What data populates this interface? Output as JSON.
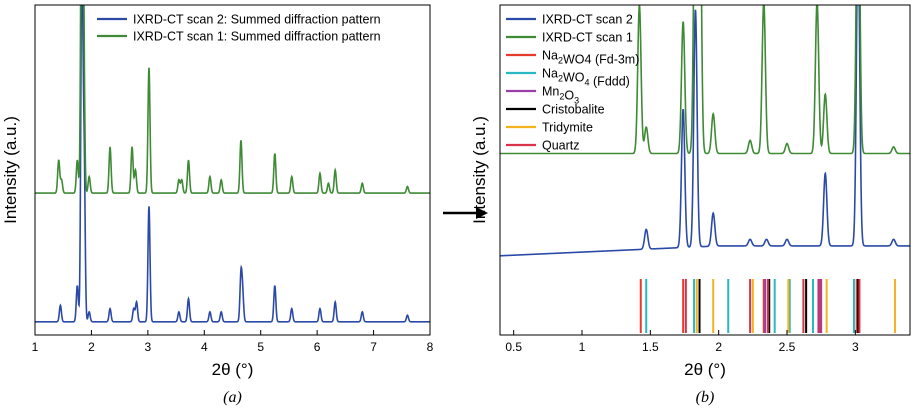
{
  "colors": {
    "scan2": "#2b4aa8",
    "scan1": "#3e8a35",
    "na2wo4_fd3m": "#e63c2f",
    "na2wo4_fddd": "#27b8c4",
    "mn2o3": "#9b3fa8",
    "cristobalite": "#000000",
    "tridymite": "#f4b21f",
    "quartz": "#d8334a",
    "arrow": "#000000"
  },
  "arrow": {
    "icon": "right-arrow-icon"
  },
  "chart_data": [
    {
      "panel": "a",
      "type": "line",
      "caption": "(a)",
      "xlabel": "2θ (°)",
      "ylabel": "Intensity (a.u.)",
      "xlim": [
        1,
        8
      ],
      "xticks": [
        "1",
        "2",
        "3",
        "4",
        "5",
        "6",
        "7",
        "8"
      ],
      "yticks": "none",
      "legend_position": "top-right",
      "series": [
        {
          "name": "IXRD-CT scan 2: Summed diffraction pattern",
          "color_key": "scan2",
          "baseline": 0.04,
          "peaks": [
            [
              1.45,
              0.05
            ],
            [
              1.75,
              0.11
            ],
            [
              1.83,
              1.1
            ],
            [
              1.87,
              0.5
            ],
            [
              1.96,
              0.03
            ],
            [
              2.33,
              0.04
            ],
            [
              2.75,
              0.04
            ],
            [
              2.8,
              0.06
            ],
            [
              3.02,
              0.35
            ],
            [
              3.55,
              0.03
            ],
            [
              3.72,
              0.07
            ],
            [
              4.1,
              0.03
            ],
            [
              4.3,
              0.03
            ],
            [
              4.65,
              0.14
            ],
            [
              4.68,
              0.08
            ],
            [
              5.25,
              0.11
            ],
            [
              5.55,
              0.04
            ],
            [
              6.05,
              0.04
            ],
            [
              6.32,
              0.06
            ],
            [
              6.8,
              0.03
            ],
            [
              7.6,
              0.02
            ]
          ]
        },
        {
          "name": "IXRD-CT scan 1: Summed diffraction pattern",
          "color_key": "scan1",
          "baseline": 0.43,
          "peaks": [
            [
              1.42,
              0.1
            ],
            [
              1.47,
              0.04
            ],
            [
              1.75,
              0.1
            ],
            [
              1.83,
              1.2
            ],
            [
              1.86,
              0.5
            ],
            [
              1.96,
              0.05
            ],
            [
              2.33,
              0.14
            ],
            [
              2.72,
              0.14
            ],
            [
              2.78,
              0.07
            ],
            [
              3.02,
              0.38
            ],
            [
              3.55,
              0.04
            ],
            [
              3.6,
              0.04
            ],
            [
              3.72,
              0.1
            ],
            [
              4.1,
              0.05
            ],
            [
              4.3,
              0.04
            ],
            [
              4.65,
              0.16
            ],
            [
              5.25,
              0.12
            ],
            [
              5.55,
              0.05
            ],
            [
              6.05,
              0.06
            ],
            [
              6.2,
              0.03
            ],
            [
              6.32,
              0.07
            ],
            [
              6.8,
              0.03
            ],
            [
              7.6,
              0.02
            ]
          ]
        }
      ]
    },
    {
      "panel": "b",
      "type": "line",
      "caption": "(b)",
      "xlabel": "2θ (°)",
      "ylabel": "Intensity (a.u.)",
      "xlim": [
        0.4,
        3.4
      ],
      "xticks": [
        "0.5",
        "1",
        "1.5",
        "2",
        "2.5",
        "3"
      ],
      "yticks": "none",
      "legend_position": "top-left",
      "series": [
        {
          "name": "IXRD-CT scan 2",
          "color_key": "scan2",
          "baseline": 0.24,
          "peaks": [
            [
              1.47,
              0.06
            ],
            [
              1.74,
              0.42
            ],
            [
              1.83,
              0.72
            ],
            [
              1.96,
              0.1
            ],
            [
              2.23,
              0.02
            ],
            [
              2.35,
              0.02
            ],
            [
              2.5,
              0.02
            ],
            [
              2.78,
              0.22
            ],
            [
              3.02,
              0.95
            ],
            [
              3.28,
              0.02
            ]
          ]
        },
        {
          "name": "IXRD-CT scan 1",
          "color_key": "scan1",
          "baseline": 0.55,
          "peaks": [
            [
              1.42,
              0.45
            ],
            [
              1.47,
              0.08
            ],
            [
              1.74,
              0.4
            ],
            [
              1.83,
              1.0
            ],
            [
              1.86,
              1.0
            ],
            [
              1.96,
              0.12
            ],
            [
              2.23,
              0.04
            ],
            [
              2.33,
              0.46
            ],
            [
              2.5,
              0.03
            ],
            [
              2.72,
              0.46
            ],
            [
              2.78,
              0.18
            ],
            [
              3.02,
              1.0
            ],
            [
              3.28,
              0.02
            ]
          ]
        }
      ],
      "reference_lines": [
        {
          "label_parts": [
            [
              "Na",
              ""
            ],
            [
              "2",
              "sub"
            ],
            [
              "WO4 (Fd-3m)",
              ""
            ]
          ],
          "color_key": "na2wo4_fd3m",
          "positions": [
            1.43,
            1.74,
            2.33,
            2.74,
            3.01
          ]
        },
        {
          "label_parts": [
            [
              "Na",
              ""
            ],
            [
              "2",
              "sub"
            ],
            [
              "WO",
              ""
            ],
            [
              "4",
              "sub"
            ],
            [
              " (Fddd)",
              ""
            ]
          ],
          "color_key": "na2wo4_fddd",
          "positions": [
            1.47,
            1.82,
            2.07,
            2.41,
            2.52,
            2.69,
            2.99
          ]
        },
        {
          "label_parts": [
            [
              "Mn",
              ""
            ],
            [
              "2",
              "sub"
            ],
            [
              "O",
              ""
            ],
            [
              "3",
              "sub"
            ]
          ],
          "color_key": "mn2o3",
          "positions": [
            2.34,
            2.73,
            2.75
          ]
        },
        {
          "label_parts": [
            [
              "Cristobalite",
              ""
            ]
          ],
          "color_key": "cristobalite",
          "positions": [
            1.86,
            2.37,
            2.64,
            3.02
          ]
        },
        {
          "label_parts": [
            [
              "Tridymite",
              ""
            ]
          ],
          "color_key": "tridymite",
          "positions": [
            1.84,
            1.96,
            2.25,
            2.51,
            2.79,
            3.29
          ]
        },
        {
          "label_parts": [
            [
              "Quartz",
              ""
            ]
          ],
          "color_key": "quartz",
          "positions": [
            1.76,
            2.23,
            2.36,
            2.62,
            2.74,
            3.03
          ]
        }
      ]
    }
  ]
}
